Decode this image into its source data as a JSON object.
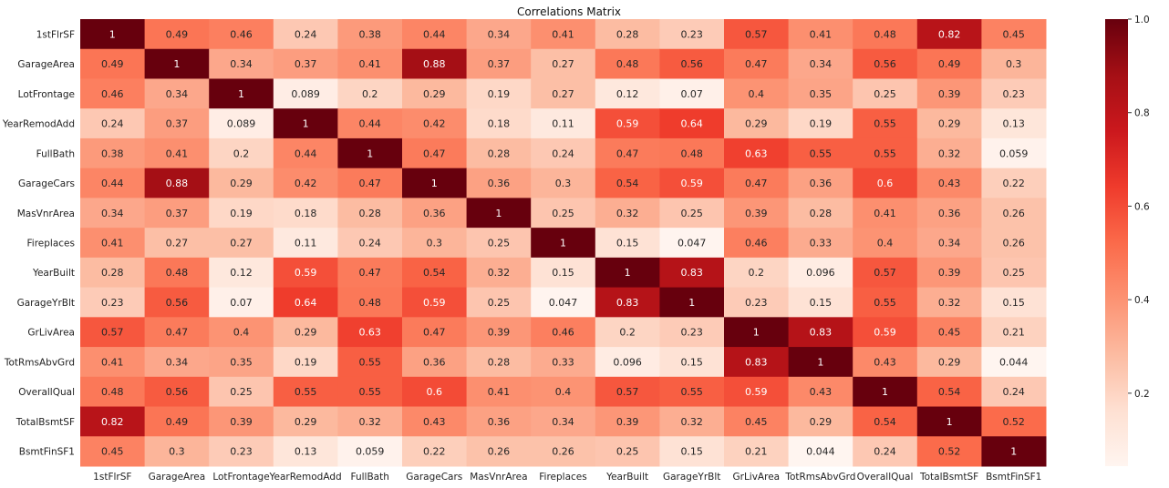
{
  "chart_data": {
    "type": "heatmap",
    "title": "Correlations Matrix",
    "colormap": "Reds",
    "value_range": [
      0.044,
      1.0
    ],
    "colorbar_ticks": [
      "1.0",
      "0.8",
      "0.6",
      "0.4",
      "0.2"
    ],
    "colorbar_tick_values": [
      1.0,
      0.8,
      0.6,
      0.4,
      0.2
    ],
    "x_labels": [
      "1stFlrSF",
      "GarageArea",
      "LotFrontage",
      "YearRemodAdd",
      "FullBath",
      "GarageCars",
      "MasVnrArea",
      "Fireplaces",
      "YearBuilt",
      "GarageYrBlt",
      "GrLivArea",
      "TotRmsAbvGrd",
      "OverallQual",
      "TotalBsmtSF",
      "BsmtFinSF1"
    ],
    "y_labels": [
      "1stFlrSF",
      "GarageArea",
      "LotFrontage",
      "YearRemodAdd",
      "FullBath",
      "GarageCars",
      "MasVnrArea",
      "Fireplaces",
      "YearBuilt",
      "GarageYrBlt",
      "GrLivArea",
      "TotRmsAbvGrd",
      "OverallQual",
      "TotalBsmtSF",
      "BsmtFinSF1"
    ],
    "values": [
      [
        1,
        0.49,
        0.46,
        0.24,
        0.38,
        0.44,
        0.34,
        0.41,
        0.28,
        0.23,
        0.57,
        0.41,
        0.48,
        0.82,
        0.45
      ],
      [
        0.49,
        1,
        0.34,
        0.37,
        0.41,
        0.88,
        0.37,
        0.27,
        0.48,
        0.56,
        0.47,
        0.34,
        0.56,
        0.49,
        0.3
      ],
      [
        0.46,
        0.34,
        1,
        0.089,
        0.2,
        0.29,
        0.19,
        0.27,
        0.12,
        0.07,
        0.4,
        0.35,
        0.25,
        0.39,
        0.23
      ],
      [
        0.24,
        0.37,
        0.089,
        1,
        0.44,
        0.42,
        0.18,
        0.11,
        0.59,
        0.64,
        0.29,
        0.19,
        0.55,
        0.29,
        0.13
      ],
      [
        0.38,
        0.41,
        0.2,
        0.44,
        1,
        0.47,
        0.28,
        0.24,
        0.47,
        0.48,
        0.63,
        0.55,
        0.55,
        0.32,
        0.059
      ],
      [
        0.44,
        0.88,
        0.29,
        0.42,
        0.47,
        1,
        0.36,
        0.3,
        0.54,
        0.59,
        0.47,
        0.36,
        0.6,
        0.43,
        0.22
      ],
      [
        0.34,
        0.37,
        0.19,
        0.18,
        0.28,
        0.36,
        1,
        0.25,
        0.32,
        0.25,
        0.39,
        0.28,
        0.41,
        0.36,
        0.26
      ],
      [
        0.41,
        0.27,
        0.27,
        0.11,
        0.24,
        0.3,
        0.25,
        1,
        0.15,
        0.047,
        0.46,
        0.33,
        0.4,
        0.34,
        0.26
      ],
      [
        0.28,
        0.48,
        0.12,
        0.59,
        0.47,
        0.54,
        0.32,
        0.15,
        1,
        0.83,
        0.2,
        0.096,
        0.57,
        0.39,
        0.25
      ],
      [
        0.23,
        0.56,
        0.07,
        0.64,
        0.48,
        0.59,
        0.25,
        0.047,
        0.83,
        1,
        0.23,
        0.15,
        0.55,
        0.32,
        0.15
      ],
      [
        0.57,
        0.47,
        0.4,
        0.29,
        0.63,
        0.47,
        0.39,
        0.46,
        0.2,
        0.23,
        1,
        0.83,
        0.59,
        0.45,
        0.21
      ],
      [
        0.41,
        0.34,
        0.35,
        0.19,
        0.55,
        0.36,
        0.28,
        0.33,
        0.096,
        0.15,
        0.83,
        1,
        0.43,
        0.29,
        0.044
      ],
      [
        0.48,
        0.56,
        0.25,
        0.55,
        0.55,
        0.6,
        0.41,
        0.4,
        0.57,
        0.55,
        0.59,
        0.43,
        1,
        0.54,
        0.24
      ],
      [
        0.82,
        0.49,
        0.39,
        0.29,
        0.32,
        0.43,
        0.36,
        0.34,
        0.39,
        0.32,
        0.45,
        0.29,
        0.54,
        1,
        0.52
      ],
      [
        0.45,
        0.3,
        0.23,
        0.13,
        0.059,
        0.22,
        0.26,
        0.26,
        0.25,
        0.15,
        0.21,
        0.044,
        0.24,
        0.52,
        1
      ]
    ]
  }
}
